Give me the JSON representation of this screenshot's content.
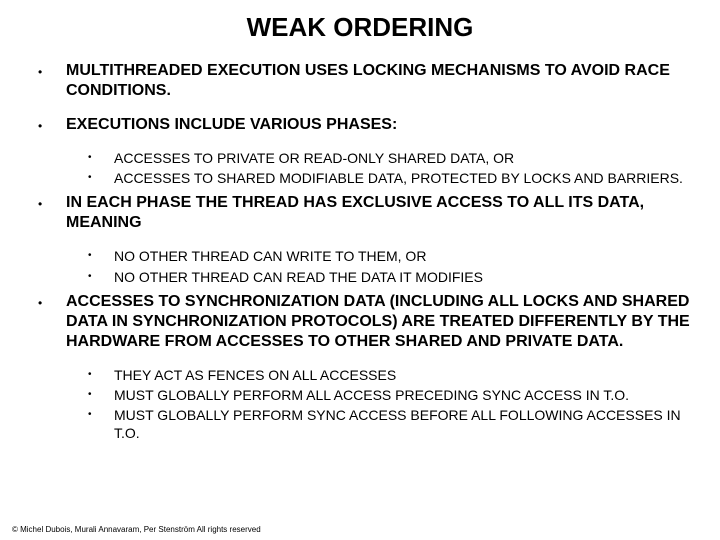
{
  "title": "WEAK ORDERING",
  "sections": [
    {
      "main": "MULTITHREADED EXECUTION USES LOCKING MECHANISMS TO AVOID RACE CONDITIONS.",
      "subs": []
    },
    {
      "main": "EXECUTIONS INCLUDE VARIOUS PHASES:",
      "subs": [
        "ACCESSES TO PRIVATE OR READ-ONLY SHARED DATA, OR",
        "ACCESSES TO SHARED MODIFIABLE DATA, PROTECTED BY LOCKS AND BARRIERS."
      ]
    },
    {
      "main": "IN EACH PHASE THE THREAD HAS EXCLUSIVE ACCESS TO ALL ITS DATA, MEANING",
      "subs": [
        " NO OTHER THREAD CAN WRITE TO THEM, OR",
        "NO OTHER THREAD CAN READ THE DATA IT MODIFIES"
      ]
    },
    {
      "main": "ACCESSES TO SYNCHRONIZATION DATA (INCLUDING ALL LOCKS AND SHARED DATA IN SYNCHRONIZATION PROTOCOLS) ARE TREATED DIFFERENTLY BY THE HARDWARE FROM ACCESSES TO OTHER SHARED AND PRIVATE DATA.",
      "subs": [
        "THEY ACT AS FENCES ON ALL ACCESSES",
        "MUST GLOBALLY PERFORM ALL ACCESS PRECEDING SYNC ACCESS IN T.O.",
        "MUST GLOBALLY PERFORM SYNC ACCESS BEFORE ALL FOLLOWING ACCESSES IN T.O."
      ]
    }
  ],
  "copyright": "© Michel Dubois, Murali Annavaram, Per Stenström All rights reserved",
  "colors": {
    "background": "#ffffff",
    "text": "#000000"
  },
  "typography": {
    "title_fontsize": 26,
    "main_fontsize": 16,
    "sub_fontsize": 14,
    "copyright_fontsize": 8,
    "font_family": "Comic Sans MS"
  }
}
